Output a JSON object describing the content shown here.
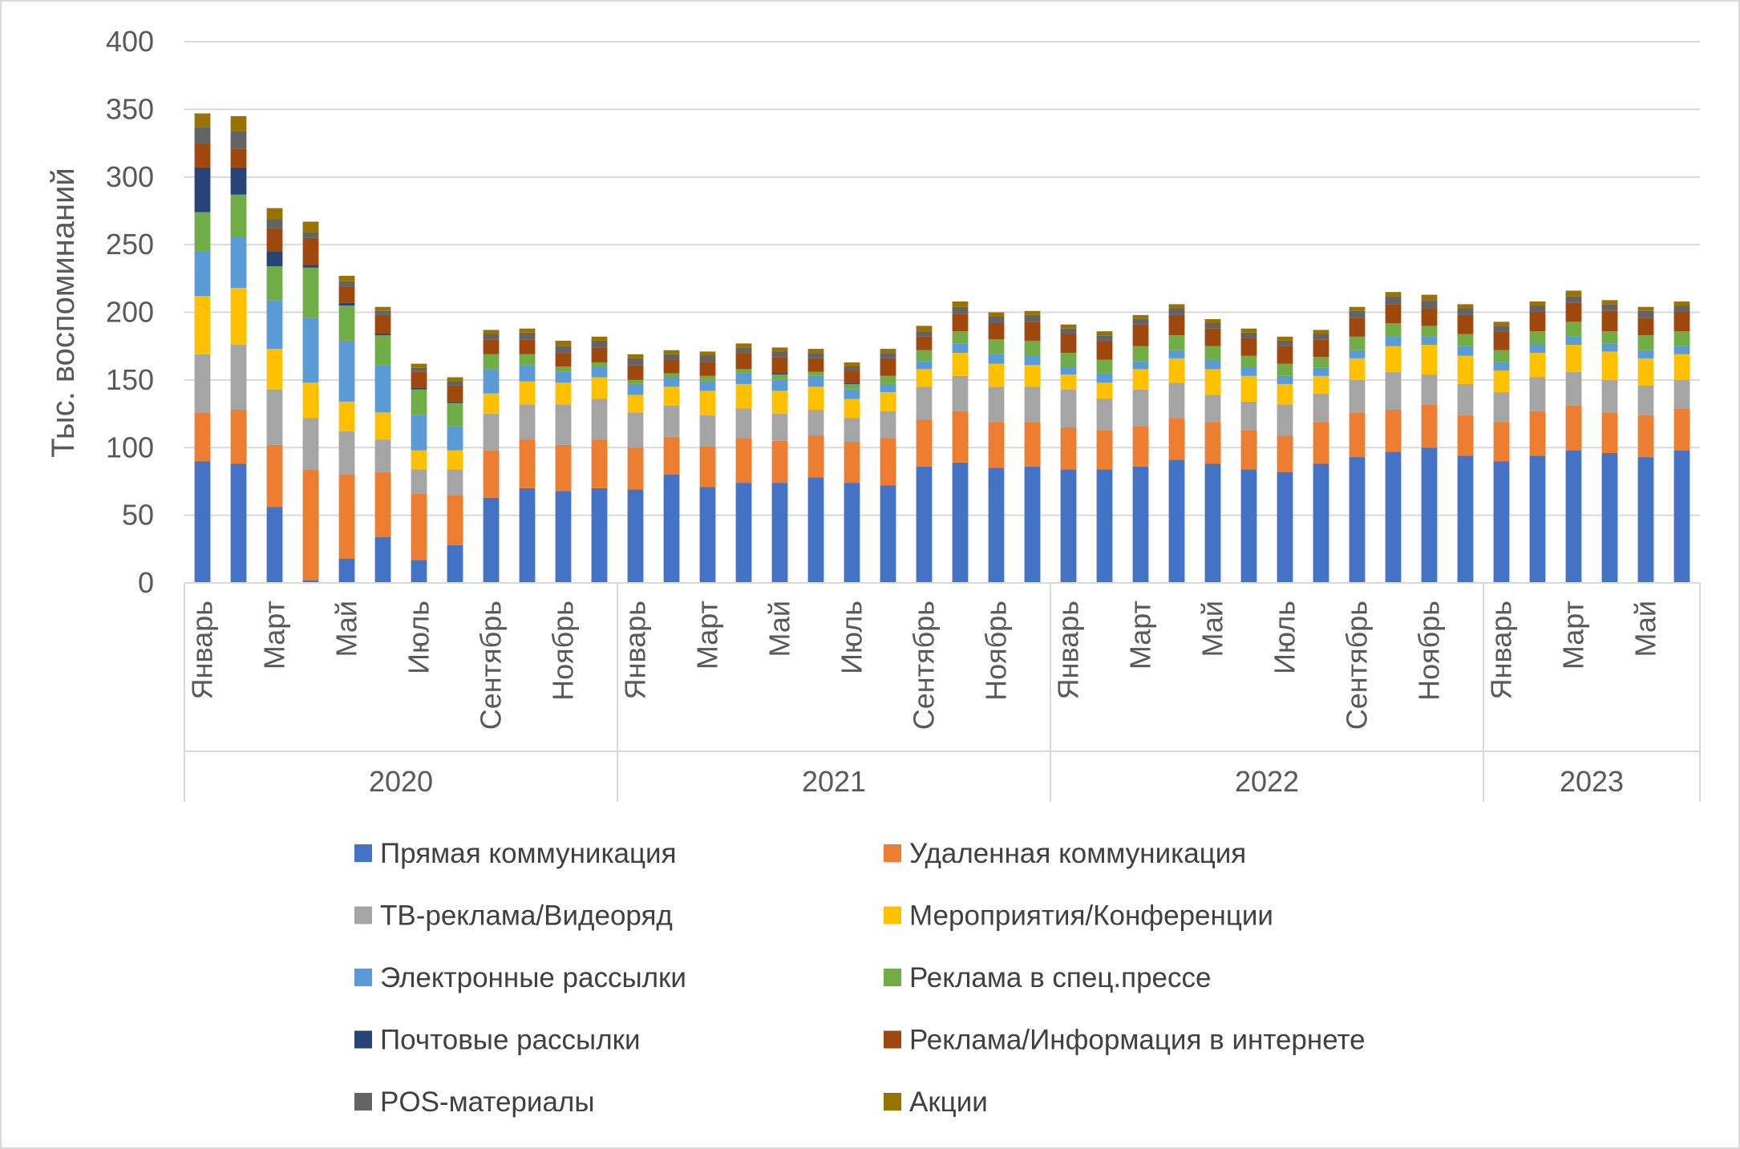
{
  "chart_data": {
    "type": "bar",
    "stacked": true,
    "ylabel": "Тыс. воспоминаний",
    "ylim": [
      0,
      400
    ],
    "yticks": [
      0,
      50,
      100,
      150,
      200,
      250,
      300,
      350,
      400
    ],
    "grid": "horizontal",
    "legend_position": "bottom",
    "years": [
      {
        "label": "2020",
        "count": 12
      },
      {
        "label": "2021",
        "count": 12
      },
      {
        "label": "2022",
        "count": 12
      },
      {
        "label": "2023",
        "count": 6
      }
    ],
    "month_labels": [
      "Январь",
      "",
      "Март",
      "",
      "Май",
      "",
      "Июль",
      "",
      "Сентябрь",
      "",
      "Ноябрь",
      "",
      "Январь",
      "",
      "Март",
      "",
      "Май",
      "",
      "Июль",
      "",
      "Сентябрь",
      "",
      "Ноябрь",
      "",
      "Январь",
      "",
      "Март",
      "",
      "Май",
      "",
      "Июль",
      "",
      "Сентябрь",
      "",
      "Ноябрь",
      "",
      "Январь",
      "",
      "Март",
      "",
      "Май",
      ""
    ],
    "series": [
      {
        "name": "Прямая коммуникация",
        "color": "#4472C4",
        "values": [
          90,
          88,
          56,
          2,
          18,
          34,
          17,
          28,
          63,
          70,
          68,
          70,
          69,
          80,
          71,
          74,
          74,
          78,
          74,
          72,
          86,
          89,
          85,
          86,
          84,
          84,
          86,
          91,
          88,
          84,
          82,
          88,
          93,
          97,
          100,
          94,
          90,
          94,
          98,
          96,
          93,
          98
        ]
      },
      {
        "name": "Удаленная коммуникация",
        "color": "#ED7D31",
        "values": [
          36,
          40,
          46,
          82,
          62,
          48,
          49,
          37,
          35,
          36,
          34,
          36,
          31,
          28,
          30,
          33,
          31,
          31,
          30,
          35,
          35,
          38,
          34,
          33,
          31,
          29,
          30,
          31,
          31,
          29,
          27,
          31,
          33,
          31,
          32,
          30,
          29,
          33,
          33,
          30,
          31,
          31
        ]
      },
      {
        "name": "ТВ-реклама/Видеоряд",
        "color": "#A5A5A5",
        "values": [
          43,
          48,
          41,
          38,
          32,
          24,
          18,
          19,
          27,
          26,
          30,
          30,
          26,
          23,
          23,
          22,
          20,
          19,
          18,
          20,
          24,
          26,
          26,
          26,
          28,
          23,
          27,
          26,
          20,
          21,
          23,
          21,
          24,
          28,
          22,
          23,
          22,
          25,
          25,
          24,
          22,
          21
        ]
      },
      {
        "name": "Мероприятия/Конференции",
        "color": "#FFC000",
        "values": [
          43,
          42,
          30,
          26,
          22,
          20,
          14,
          14,
          15,
          17,
          16,
          16,
          13,
          14,
          18,
          18,
          17,
          17,
          14,
          14,
          13,
          17,
          17,
          16,
          11,
          12,
          15,
          18,
          19,
          19,
          15,
          13,
          16,
          19,
          22,
          21,
          16,
          18,
          20,
          21,
          20,
          19
        ]
      },
      {
        "name": "Электронные рассылки",
        "color": "#5B9BD5",
        "values": [
          33,
          38,
          36,
          48,
          45,
          35,
          26,
          18,
          18,
          12,
          8,
          8,
          8,
          7,
          7,
          8,
          8,
          8,
          7,
          6,
          6,
          7,
          7,
          7,
          6,
          7,
          6,
          6,
          7,
          7,
          6,
          6,
          6,
          7,
          6,
          7,
          6,
          6,
          6,
          6,
          6,
          6
        ]
      },
      {
        "name": "Реклама в спец.прессе",
        "color": "#70AD47",
        "values": [
          29,
          31,
          25,
          37,
          26,
          22,
          19,
          17,
          11,
          8,
          4,
          3,
          3,
          3,
          4,
          3,
          4,
          3,
          4,
          6,
          8,
          9,
          11,
          11,
          10,
          10,
          11,
          11,
          10,
          8,
          9,
          8,
          10,
          10,
          8,
          9,
          9,
          10,
          11,
          9,
          11,
          11
        ]
      },
      {
        "name": "Почтовые рассылки",
        "color": "#264478",
        "values": [
          33,
          20,
          11,
          2,
          2,
          1,
          1,
          1,
          0,
          0,
          0,
          0,
          0,
          0,
          0,
          0,
          1,
          0,
          1,
          0,
          0,
          0,
          0,
          0,
          0,
          0,
          0,
          0,
          0,
          0,
          0,
          0,
          0,
          0,
          0,
          0,
          0,
          0,
          0,
          0,
          0,
          0
        ]
      },
      {
        "name": "Реклама/Информация в интернете",
        "color": "#9E480E",
        "values": [
          18,
          14,
          17,
          20,
          12,
          14,
          12,
          12,
          11,
          11,
          10,
          11,
          11,
          10,
          10,
          12,
          12,
          10,
          9,
          13,
          10,
          13,
          12,
          14,
          14,
          14,
          16,
          15,
          13,
          13,
          13,
          13,
          14,
          14,
          13,
          14,
          14,
          14,
          14,
          15,
          13,
          14
        ]
      },
      {
        "name": "POS-материалы",
        "color": "#636363",
        "values": [
          12,
          13,
          7,
          4,
          4,
          3,
          3,
          3,
          4,
          5,
          5,
          5,
          5,
          4,
          5,
          4,
          4,
          4,
          3,
          4,
          4,
          5,
          5,
          5,
          4,
          4,
          4,
          5,
          4,
          4,
          4,
          4,
          5,
          6,
          6,
          5,
          4,
          5,
          5,
          5,
          5,
          5
        ]
      },
      {
        "name": "Акции",
        "color": "#997300",
        "values": [
          10,
          11,
          8,
          8,
          4,
          3,
          3,
          3,
          3,
          3,
          4,
          3,
          3,
          3,
          3,
          3,
          3,
          3,
          3,
          3,
          4,
          4,
          3,
          3,
          3,
          3,
          3,
          3,
          3,
          3,
          3,
          3,
          3,
          3,
          4,
          3,
          3,
          3,
          4,
          3,
          3,
          3
        ]
      }
    ]
  }
}
